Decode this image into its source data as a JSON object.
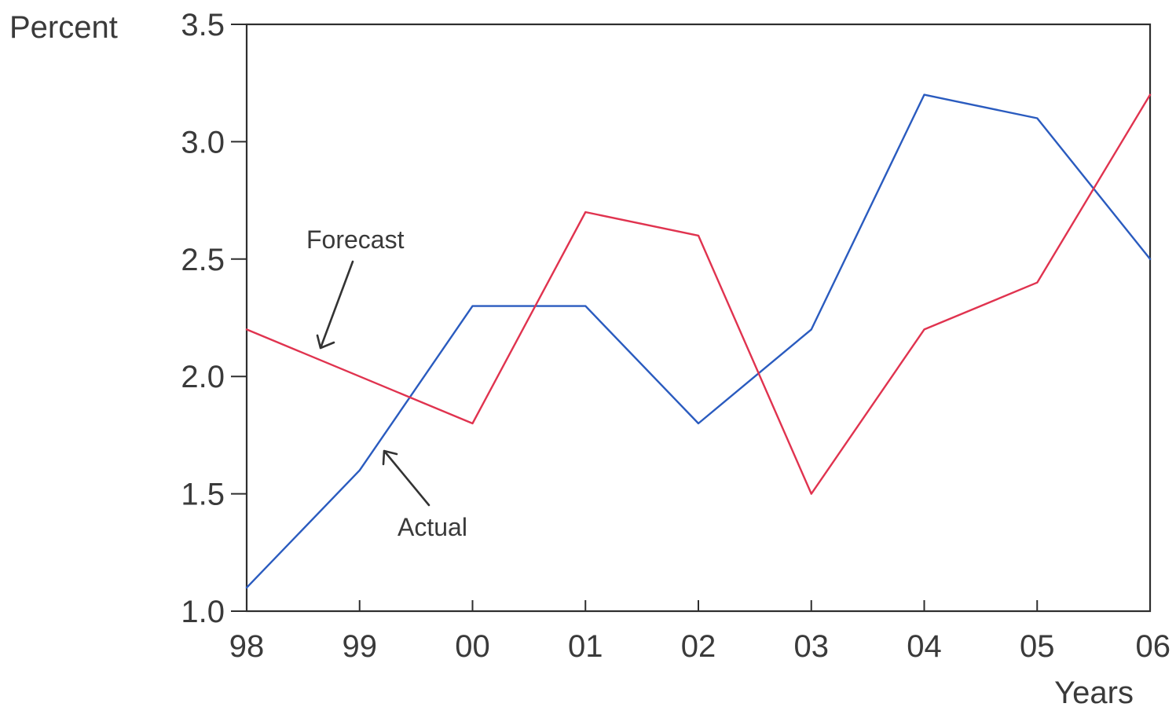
{
  "chart_data": {
    "type": "line",
    "x": [
      "98",
      "99",
      "00",
      "01",
      "02",
      "03",
      "04",
      "05",
      "06"
    ],
    "xlabel": "Years",
    "ylabel": "Percent",
    "ylim": [
      1.0,
      3.5
    ],
    "yticks": [
      "1.0",
      "1.5",
      "2.0",
      "2.5",
      "3.0",
      "3.5"
    ],
    "grid": false,
    "legend": "none",
    "series": [
      {
        "name": "Actual",
        "color": "#2a5bbf",
        "values": [
          1.1,
          1.6,
          2.3,
          2.3,
          1.8,
          2.2,
          3.2,
          3.1,
          2.5
        ]
      },
      {
        "name": "Forecast",
        "color": "#e0334f",
        "values": [
          2.2,
          2.0,
          1.8,
          2.7,
          2.6,
          1.5,
          2.2,
          2.4,
          3.2
        ]
      }
    ],
    "annotations": [
      {
        "text": "Forecast",
        "series": "Forecast"
      },
      {
        "text": "Actual",
        "series": "Actual"
      }
    ]
  }
}
